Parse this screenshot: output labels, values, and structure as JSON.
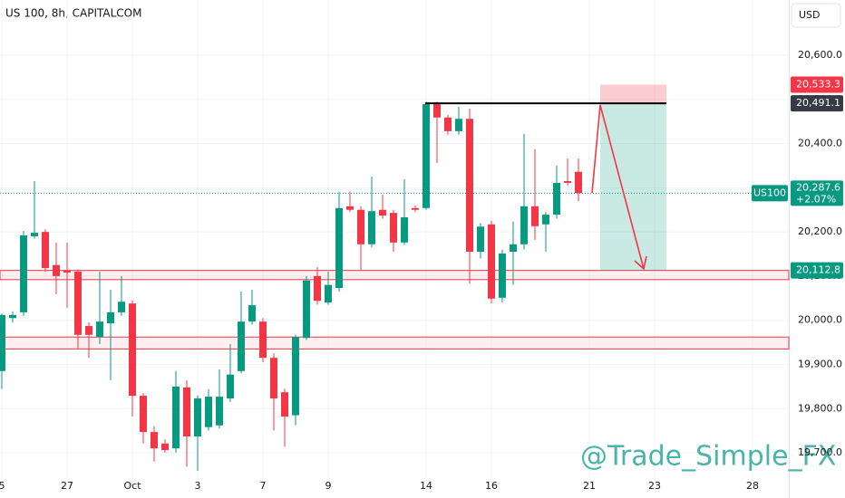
{
  "chart_data": {
    "type": "candlestick",
    "title": "US 100, 8h, CAPITALCOM",
    "currency": "USD",
    "watermark": "@Trade_Simple_FX",
    "up_color": "#089981",
    "down_color": "#f23645",
    "ylim": [
      19638.6,
      20725
    ],
    "yticks": [
      {
        "value": 19700,
        "label": "19,700.0"
      },
      {
        "value": 19800,
        "label": "19,800.0"
      },
      {
        "value": 19900,
        "label": "19,900.0"
      },
      {
        "value": 20000,
        "label": "20,000.0"
      },
      {
        "value": 20100,
        "label": "20,100.0"
      },
      {
        "value": 20200,
        "label": "20,200.0"
      },
      {
        "value": 20300,
        "label": "20,300.0"
      },
      {
        "value": 20400,
        "label": "20,400.0"
      },
      {
        "value": 20500,
        "label": "20,500.0"
      },
      {
        "value": 20600,
        "label": "20,600.0"
      }
    ],
    "categories": [
      "5",
      null,
      null,
      null,
      null,
      null,
      "27",
      null,
      null,
      null,
      null,
      null,
      "Oct",
      null,
      null,
      null,
      null,
      null,
      "3",
      null,
      null,
      null,
      null,
      null,
      "7",
      null,
      null,
      null,
      null,
      null,
      "9",
      null,
      null,
      null,
      null,
      null,
      null,
      null,
      null,
      "14",
      null,
      null,
      null,
      null,
      null,
      "16",
      null,
      null,
      null,
      null,
      null,
      null,
      null,
      null,
      "21",
      null,
      null,
      null,
      null,
      null,
      "23",
      null,
      null,
      null,
      null,
      null,
      null,
      null,
      null,
      "28"
    ],
    "open": [
      19885,
      20005,
      20018,
      20190,
      20200,
      20125,
      20112,
      20110,
      19987,
      19962,
      19993,
      20018,
      20038,
      19829,
      19747,
      19721,
      19710,
      19848,
      19737,
      19758,
      19762,
      19823,
      19885,
      19997,
      19997,
      19915,
      19837,
      19785,
      19960,
      20100,
      20040,
      20073,
      20258,
      20250,
      20172,
      20250,
      20243,
      20176,
      20254,
      20254,
      20489,
      20459,
      20428,
      20456,
      20155,
      20217,
      20051,
      20155,
      20172,
      20258,
      20217,
      20239,
      20315,
      20336,
      null,
      null,
      null,
      null,
      null,
      null,
      null,
      null,
      null,
      null,
      null,
      null,
      null,
      null,
      null,
      null
    ],
    "high": [
      20015,
      20020,
      20202,
      20315,
      20206,
      20176,
      20176,
      20115,
      19995,
      20110,
      20069,
      20100,
      20045,
      19835,
      19760,
      19730,
      19885,
      19864,
      19830,
      19844,
      19889,
      19946,
      20065,
      20069,
      20005,
      19925,
      19845,
      19967,
      20100,
      20120,
      20110,
      20291,
      20291,
      20258,
      20325,
      20284,
      20250,
      20319,
      20260,
      20495,
      20495,
      20465,
      20483,
      20479,
      20220,
      20225,
      20160,
      20223,
      20422,
      20387,
      20245,
      20350,
      20366,
      20366,
      null,
      null,
      null,
      null,
      null,
      null,
      null,
      null,
      null,
      null,
      null,
      null,
      null,
      null,
      null,
      null
    ],
    "low": [
      19844,
      19995,
      20010,
      20185,
      20110,
      20059,
      20028,
      19936,
      19915,
      19946,
      19864,
      20010,
      19782,
      19721,
      19680,
      19700,
      19700,
      19669,
      19659,
      19750,
      19755,
      19815,
      19880,
      19990,
      19905,
      19751,
      19714,
      19762,
      19955,
      20035,
      20035,
      20065,
      20245,
      20114,
      20165,
      20230,
      20155,
      20170,
      20245,
      20250,
      20356,
      20420,
      20420,
      20083,
      20140,
      20038,
      20040,
      20080,
      20160,
      20182,
      20155,
      20230,
      20305,
      20270,
      null,
      null,
      null,
      null,
      null,
      null,
      null,
      null,
      null,
      null,
      null,
      null,
      null,
      null,
      null,
      null
    ],
    "close": [
      20012,
      20012,
      20192,
      20198,
      20118,
      20100,
      20108,
      19967,
      19967,
      19997,
      20018,
      20042,
      19829,
      19747,
      19710,
      19706,
      19850,
      19737,
      19823,
      19827,
      19827,
      19877,
      19997,
      20034,
      19915,
      19823,
      19782,
      19962,
      20090,
      20044,
      20080,
      20254,
      20250,
      20172,
      20247,
      20237,
      20176,
      20233,
      20250,
      20489,
      20459,
      20428,
      20456,
      20155,
      20212,
      20049,
      20151,
      20172,
      20258,
      20213,
      20239,
      20311,
      20311,
      20288,
      null,
      null,
      null,
      null,
      null,
      null,
      null,
      null,
      null,
      null,
      null,
      null,
      null,
      null,
      null,
      null
    ],
    "zones": [
      {
        "low": 20092,
        "high": 20112.8
      },
      {
        "low": 19935,
        "high": 19962
      }
    ],
    "position": {
      "stop": 20533.3,
      "entry": 20491.1,
      "target": 20112.8
    },
    "price_labels": [
      {
        "value": 20533.3,
        "label": "20,533.3",
        "color": "#f23645"
      },
      {
        "value": 20491.1,
        "label": "20,491.1",
        "color": "#363a45"
      },
      {
        "value": 20112.8,
        "label": "20,112.8",
        "color": "#089981"
      }
    ],
    "last_price": {
      "name": "US100",
      "value": 20287.6,
      "label": "20,287.6",
      "change": "+2.07%",
      "color": "#089981"
    }
  }
}
